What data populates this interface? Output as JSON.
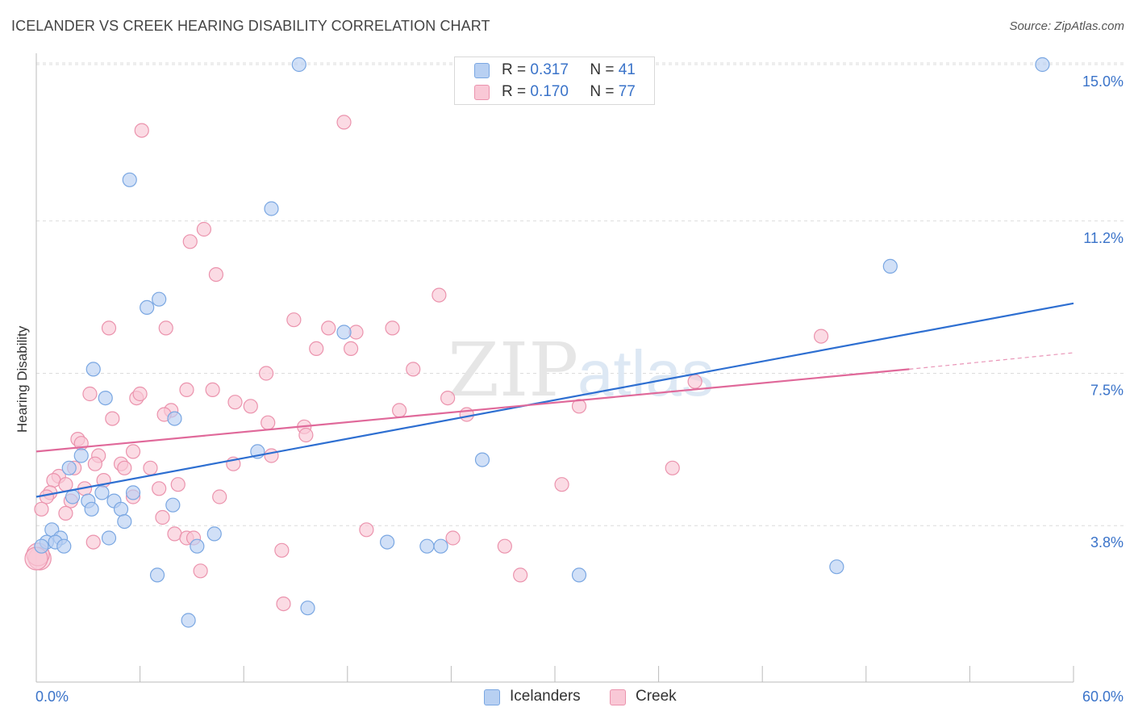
{
  "header": {
    "title": "ICELANDER VS CREEK HEARING DISABILITY CORRELATION CHART",
    "source": "Source: ZipAtlas.com"
  },
  "legend_top": {
    "rows": [
      {
        "series": "Icelanders",
        "r_label": "R =",
        "r_value": "0.317",
        "n_label": "N =",
        "n_value": "41"
      },
      {
        "series": "Creek",
        "r_label": "R =",
        "r_value": "0.170",
        "n_label": "N =",
        "n_value": "77"
      }
    ]
  },
  "legend_bottom": {
    "items": [
      {
        "label": "Icelanders"
      },
      {
        "label": "Creek"
      }
    ]
  },
  "watermark": {
    "part1": "ZIP",
    "part2": "atlas"
  },
  "colors": {
    "blue_fill": "#b8d0f2",
    "blue_stroke": "#7aa7e2",
    "blue_line": "#2e6fd1",
    "pink_fill": "#f9c8d6",
    "pink_stroke": "#eb93ad",
    "pink_line": "#e0699a",
    "tick_text": "#3a73c9",
    "grid": "#dcdcdc"
  },
  "chart_data": {
    "type": "scatter",
    "title": "ICELANDER VS CREEK HEARING DISABILITY CORRELATION CHART",
    "xlabel": "",
    "ylabel": "Hearing Disability",
    "xlim": [
      0,
      60
    ],
    "ylim": [
      0,
      15.9
    ],
    "x_tick_labels": [
      {
        "value": 0,
        "label": "0.0%"
      },
      {
        "value": 60,
        "label": "60.0%"
      }
    ],
    "x_minor_ticks": [
      0,
      6,
      12,
      18,
      24,
      30,
      36,
      42,
      48,
      54,
      60
    ],
    "y_ticks": [
      {
        "value": 3.8,
        "label": "3.8%"
      },
      {
        "value": 7.5,
        "label": "7.5%"
      },
      {
        "value": 11.2,
        "label": "11.2%"
      },
      {
        "value": 15.0,
        "label": "15.0%"
      }
    ],
    "series": [
      {
        "name": "Icelanders",
        "R": 0.317,
        "N": 41,
        "trend": {
          "x0": 0,
          "y0": 4.5,
          "x1": 60,
          "y1": 9.2
        },
        "points": [
          [
            15.2,
            15.0
          ],
          [
            58.2,
            15.0
          ],
          [
            5.4,
            12.2
          ],
          [
            13.6,
            11.5
          ],
          [
            49.4,
            10.1
          ],
          [
            7.1,
            9.3
          ],
          [
            6.4,
            9.1
          ],
          [
            17.8,
            8.5
          ],
          [
            3.3,
            7.6
          ],
          [
            4.0,
            6.9
          ],
          [
            8.0,
            6.4
          ],
          [
            12.8,
            5.6
          ],
          [
            25.8,
            5.4
          ],
          [
            2.6,
            5.5
          ],
          [
            1.9,
            5.2
          ],
          [
            3.8,
            4.6
          ],
          [
            5.6,
            4.6
          ],
          [
            2.1,
            4.5
          ],
          [
            3.0,
            4.4
          ],
          [
            4.5,
            4.4
          ],
          [
            7.9,
            4.3
          ],
          [
            3.2,
            4.2
          ],
          [
            4.9,
            4.2
          ],
          [
            5.1,
            3.9
          ],
          [
            0.9,
            3.7
          ],
          [
            1.4,
            3.5
          ],
          [
            4.2,
            3.5
          ],
          [
            10.3,
            3.6
          ],
          [
            0.6,
            3.4
          ],
          [
            1.1,
            3.4
          ],
          [
            0.3,
            3.3
          ],
          [
            1.6,
            3.3
          ],
          [
            9.3,
            3.3
          ],
          [
            20.3,
            3.4
          ],
          [
            22.6,
            3.3
          ],
          [
            23.4,
            3.3
          ],
          [
            7.0,
            2.6
          ],
          [
            31.4,
            2.6
          ],
          [
            46.3,
            2.8
          ],
          [
            8.8,
            1.5
          ],
          [
            15.7,
            1.8
          ]
        ]
      },
      {
        "name": "Creek",
        "R": 0.17,
        "N": 77,
        "trend": {
          "x0": 0,
          "y0": 5.6,
          "x1": 50.5,
          "y1": 7.6
        },
        "trend_dashed": {
          "x0": 50.5,
          "y0": 7.6,
          "x1": 60,
          "y1": 8.0
        },
        "points": [
          [
            17.8,
            13.6
          ],
          [
            6.1,
            13.4
          ],
          [
            9.7,
            11.0
          ],
          [
            8.9,
            10.7
          ],
          [
            10.4,
            9.9
          ],
          [
            23.3,
            9.4
          ],
          [
            14.9,
            8.8
          ],
          [
            4.2,
            8.6
          ],
          [
            7.5,
            8.6
          ],
          [
            16.9,
            8.6
          ],
          [
            18.5,
            8.5
          ],
          [
            20.6,
            8.6
          ],
          [
            45.4,
            8.4
          ],
          [
            16.2,
            8.1
          ],
          [
            18.2,
            8.1
          ],
          [
            13.3,
            7.5
          ],
          [
            21.8,
            7.6
          ],
          [
            38.1,
            7.3
          ],
          [
            8.7,
            7.1
          ],
          [
            10.2,
            7.1
          ],
          [
            3.1,
            7.0
          ],
          [
            5.8,
            6.9
          ],
          [
            6.0,
            7.0
          ],
          [
            23.8,
            6.9
          ],
          [
            11.5,
            6.8
          ],
          [
            12.4,
            6.7
          ],
          [
            7.8,
            6.6
          ],
          [
            7.4,
            6.5
          ],
          [
            21.0,
            6.6
          ],
          [
            24.9,
            6.5
          ],
          [
            31.4,
            6.7
          ],
          [
            4.4,
            6.4
          ],
          [
            13.4,
            6.3
          ],
          [
            15.5,
            6.2
          ],
          [
            15.6,
            6.0
          ],
          [
            2.4,
            5.9
          ],
          [
            2.6,
            5.8
          ],
          [
            5.6,
            5.6
          ],
          [
            3.6,
            5.5
          ],
          [
            13.6,
            5.5
          ],
          [
            3.4,
            5.3
          ],
          [
            4.9,
            5.3
          ],
          [
            2.2,
            5.2
          ],
          [
            5.1,
            5.2
          ],
          [
            6.6,
            5.2
          ],
          [
            11.4,
            5.3
          ],
          [
            36.8,
            5.2
          ],
          [
            1.3,
            5.0
          ],
          [
            1.0,
            4.9
          ],
          [
            3.9,
            4.9
          ],
          [
            1.7,
            4.8
          ],
          [
            7.1,
            4.7
          ],
          [
            8.2,
            4.8
          ],
          [
            2.8,
            4.7
          ],
          [
            30.4,
            4.8
          ],
          [
            0.8,
            4.6
          ],
          [
            0.6,
            4.5
          ],
          [
            5.6,
            4.5
          ],
          [
            10.6,
            4.5
          ],
          [
            2.0,
            4.4
          ],
          [
            0.3,
            4.2
          ],
          [
            1.7,
            4.1
          ],
          [
            7.3,
            4.0
          ],
          [
            19.1,
            3.7
          ],
          [
            8.0,
            3.6
          ],
          [
            8.7,
            3.5
          ],
          [
            9.1,
            3.5
          ],
          [
            3.3,
            3.4
          ],
          [
            24.1,
            3.5
          ],
          [
            27.1,
            3.3
          ],
          [
            14.2,
            3.2
          ],
          [
            9.5,
            2.7
          ],
          [
            28.0,
            2.6
          ],
          [
            14.3,
            1.9
          ],
          [
            0.2,
            3.0
          ],
          [
            0.1,
            3.1
          ],
          [
            0.0,
            3.0
          ]
        ]
      }
    ]
  }
}
